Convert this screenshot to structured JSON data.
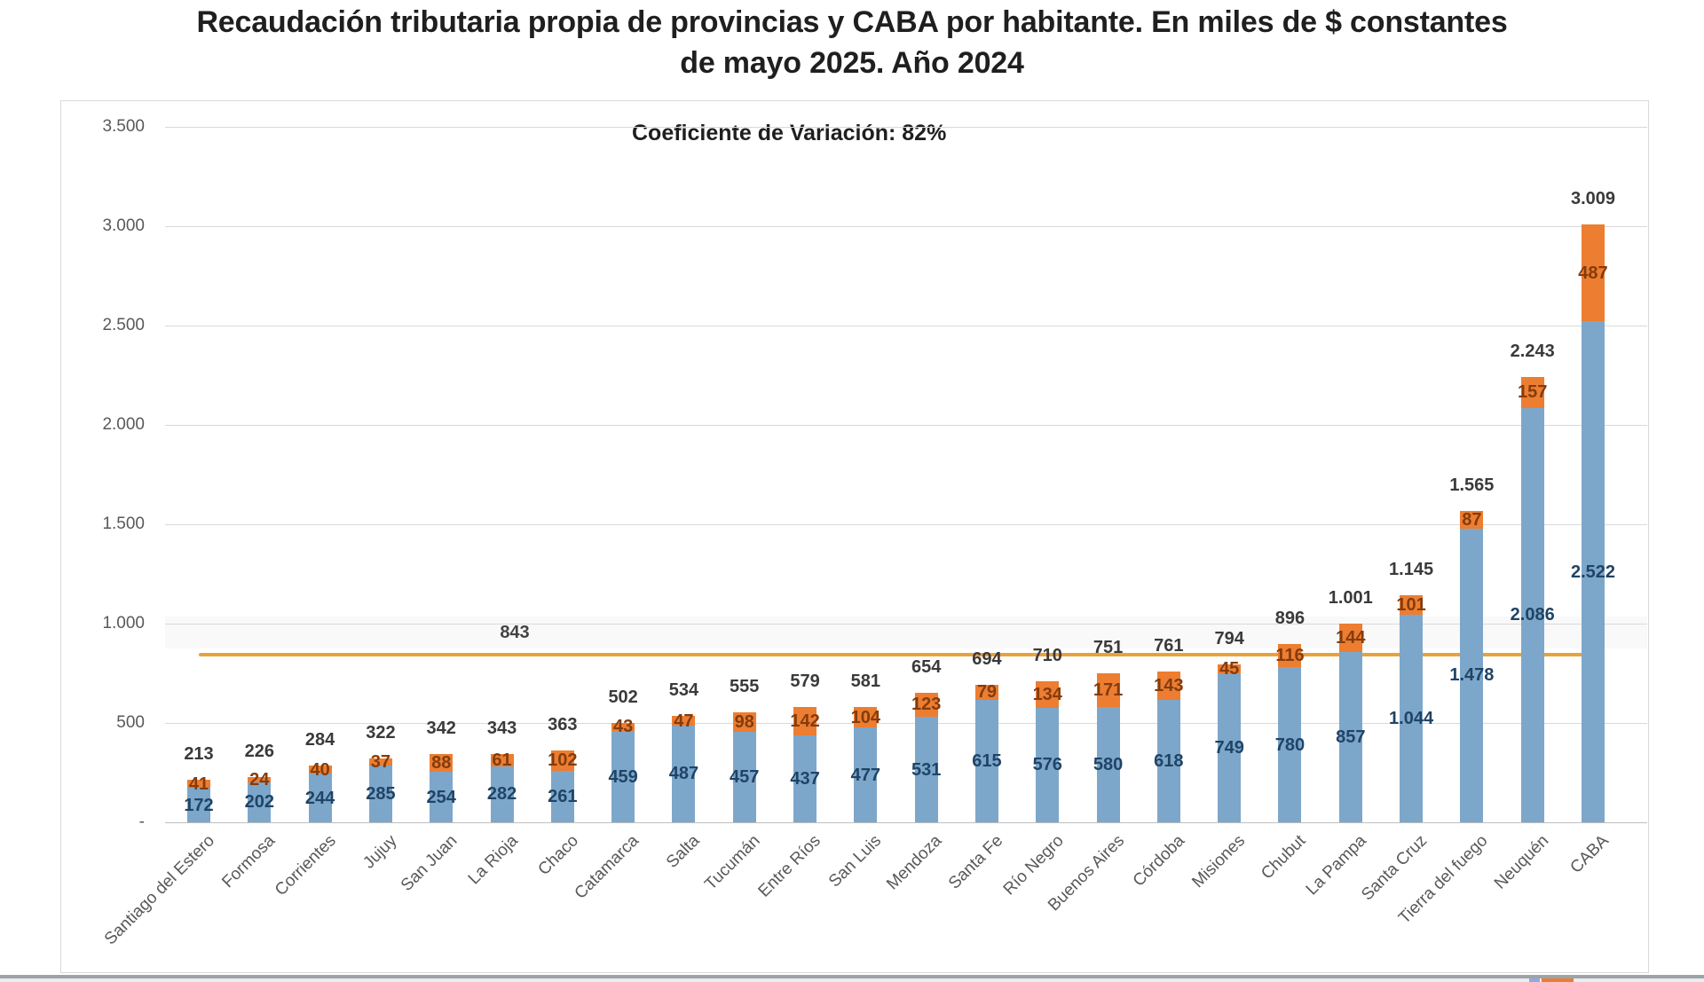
{
  "title": {
    "line1": "Recaudación tributaria propia de provincias y CABA por habitante. En miles de $ constantes",
    "line2": "de mayo 2025. Año 2024"
  },
  "annotation": "Coeficiente de Variación: 82%",
  "y_axis": {
    "ticks": [
      {
        "value": 3500,
        "label": "3.500"
      },
      {
        "value": 3000,
        "label": "3.000"
      },
      {
        "value": 2500,
        "label": "2.500"
      },
      {
        "value": 2000,
        "label": "2.000"
      },
      {
        "value": 1500,
        "label": "1.500"
      },
      {
        "value": 1000,
        "label": "1.000"
      },
      {
        "value": 500,
        "label": "500"
      },
      {
        "value": 0,
        "label": "-"
      }
    ]
  },
  "chart_data": {
    "type": "bar",
    "stacked": true,
    "title": "Recaudación tributaria propia de provincias y CABA por habitante. En miles de $ constantes de mayo 2025. Año 2024",
    "xlabel": "",
    "ylabel": "",
    "ylim": [
      0,
      3500
    ],
    "grid": true,
    "legend_position": "none",
    "annotation": "Coeficiente de Variación: 82%",
    "categories": [
      "Santiago del Estero",
      "Formosa",
      "Corrientes",
      "Jujuy",
      "San Juan",
      "La Rioja",
      "Chaco",
      "Catamarca",
      "Salta",
      "Tucumán",
      "Entre Ríos",
      "San Luis",
      "Mendoza",
      "Santa Fe",
      "Río Negro",
      "Buenos Aires",
      "Córdoba",
      "Misiones",
      "Chubut",
      "La Pampa",
      "Santa Cruz",
      "Tierra del fuego",
      "Neuquén",
      "CABA"
    ],
    "series": [
      {
        "name": "base-component",
        "color": "#7da7ca",
        "values": [
          172,
          202,
          244,
          285,
          254,
          282,
          261,
          459,
          487,
          457,
          437,
          477,
          531,
          615,
          576,
          580,
          618,
          749,
          780,
          857,
          1044,
          1478,
          2086,
          2522
        ]
      },
      {
        "name": "top-component",
        "color": "#ed7d31",
        "values": [
          41,
          24,
          39,
          37,
          88,
          61,
          102,
          44,
          47,
          98,
          142,
          104,
          122,
          79,
          134,
          171,
          142,
          45,
          116,
          144,
          101,
          87,
          157,
          487
        ]
      }
    ],
    "totals": [
      213,
      226,
      284,
      322,
      342,
      343,
      363,
      502,
      534,
      555,
      579,
      581,
      654,
      694,
      710,
      751,
      761,
      794,
      896,
      1001,
      1145,
      1565,
      2243,
      3009
    ],
    "reference_line": {
      "value": 843,
      "label": "843"
    }
  },
  "colors": {
    "bar_blue": "#7da7ca",
    "bar_orange": "#ed7d31",
    "avg_line": "#e9a13b",
    "total_label": "#3a3a3a",
    "blue_label": "#1f4466",
    "orange_label": "#843c0c",
    "axis_text": "#595959",
    "gridline": "#d9d9d9",
    "footer_rule": "#9ea3a8",
    "footer_track": "#e9eef4",
    "legend_frag_blue": "#8faadc"
  }
}
